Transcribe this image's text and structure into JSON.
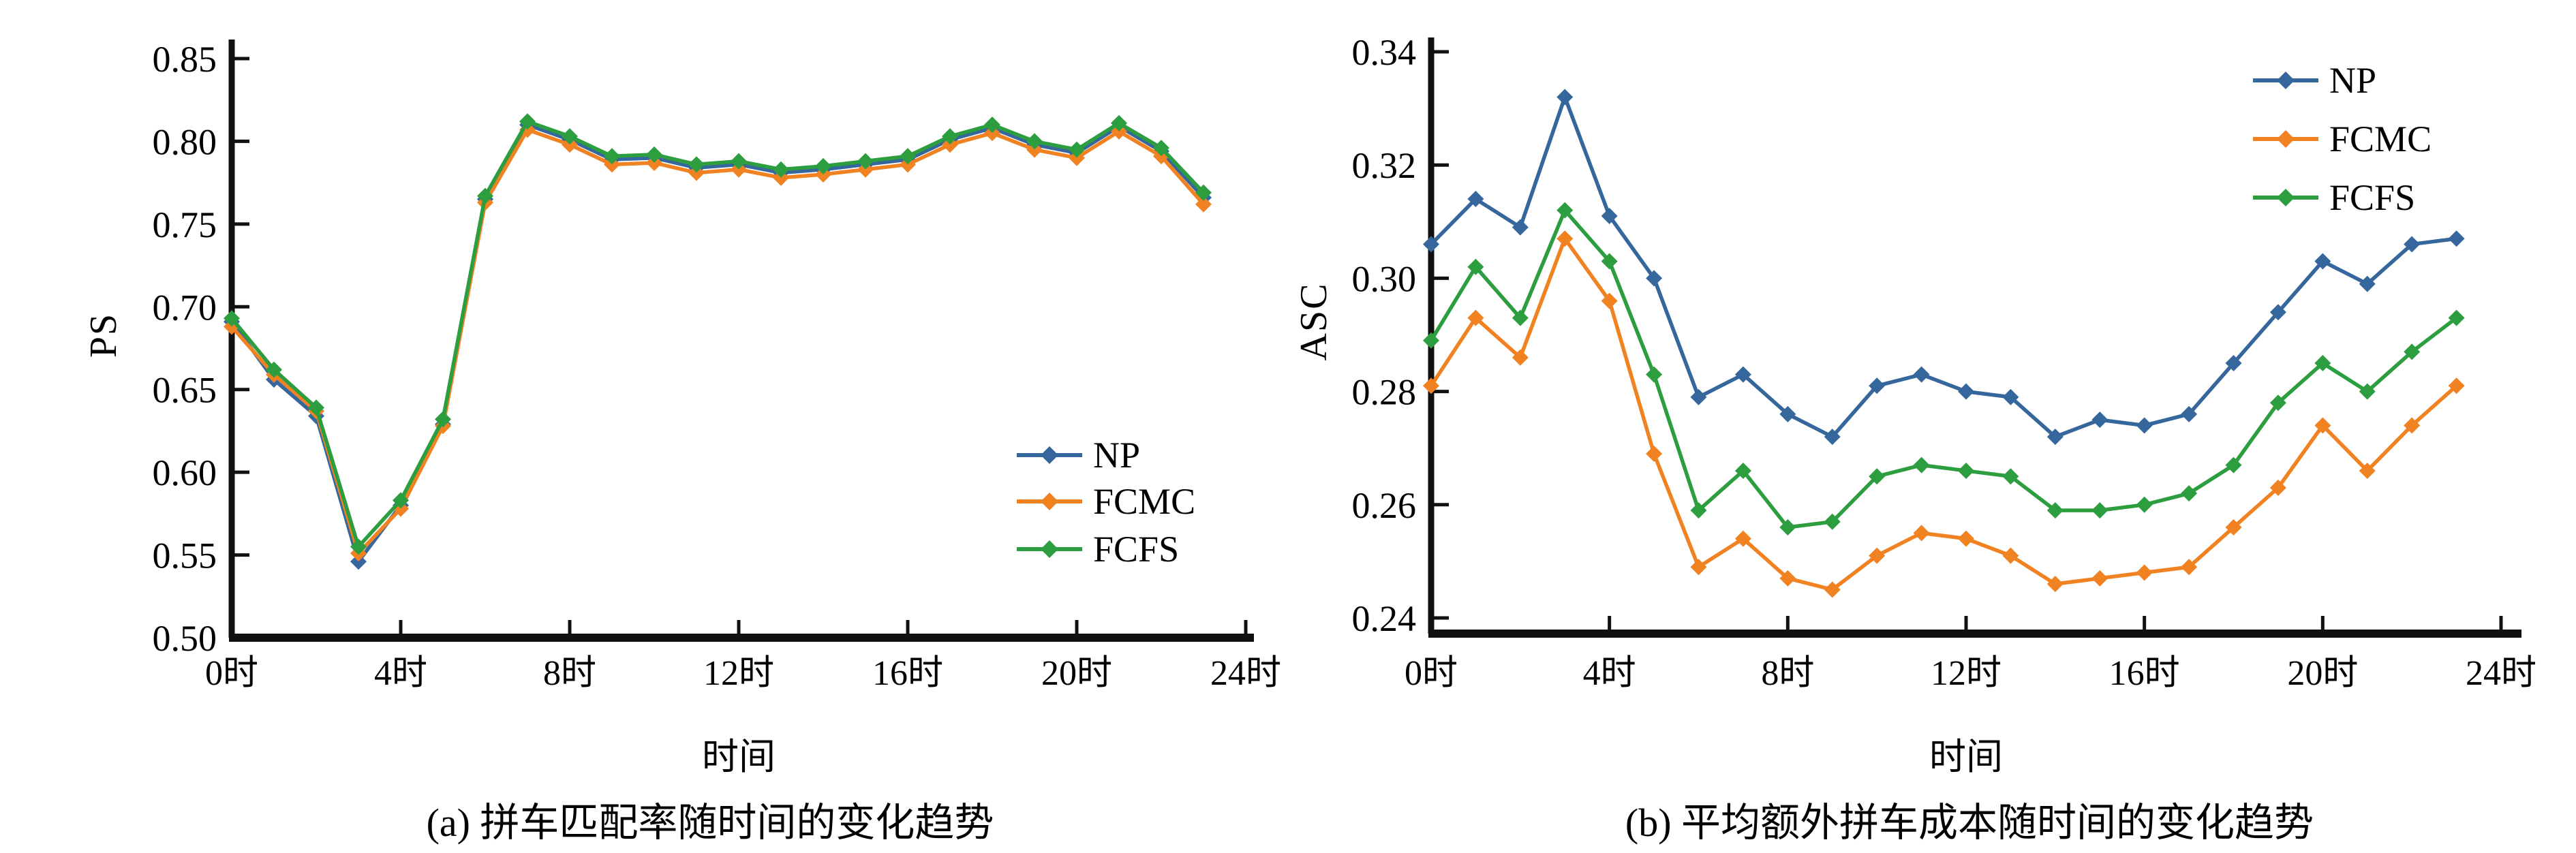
{
  "page": {
    "background": "#ffffff"
  },
  "colors": {
    "np": "#35679d",
    "fcmc": "#f08222",
    "fcfs": "#2d9e3f",
    "axis": "#111111",
    "text": "#000000"
  },
  "chart_data": [
    {
      "id": "a",
      "type": "line",
      "caption": "(a) 拼车匹配率随时间的变化趋势",
      "xlabel": "时间",
      "ylabel": "PS",
      "x": [
        0,
        1,
        2,
        3,
        4,
        5,
        6,
        7,
        8,
        9,
        10,
        11,
        12,
        13,
        14,
        15,
        16,
        17,
        18,
        19,
        20,
        21,
        22,
        23
      ],
      "xtick_hours": [
        0,
        4,
        8,
        12,
        16,
        20,
        24
      ],
      "xtick_labels": [
        "0时",
        "4时",
        "8时",
        "12时",
        "16时",
        "20时",
        "24时"
      ],
      "ylim": [
        0.5,
        0.85
      ],
      "yticks": [
        0.85,
        0.8,
        0.75,
        0.7,
        0.65,
        0.6,
        0.55,
        0.5
      ],
      "ytick_labels": [
        "0.85",
        "0.80",
        "0.75",
        "0.70",
        "0.65",
        "0.60",
        "0.55",
        "0.50"
      ],
      "grid": false,
      "legend_position": "center-right",
      "legend_labels": [
        "NP",
        "FCMC",
        "FCFS"
      ],
      "series": [
        {
          "name": "NP",
          "color": "#35679d",
          "values": [
            0.691,
            0.656,
            0.634,
            0.546,
            0.58,
            0.629,
            0.765,
            0.81,
            0.801,
            0.789,
            0.79,
            0.784,
            0.786,
            0.781,
            0.783,
            0.786,
            0.789,
            0.801,
            0.808,
            0.798,
            0.793,
            0.809,
            0.794,
            0.766
          ]
        },
        {
          "name": "FCMC",
          "color": "#f08222",
          "values": [
            0.688,
            0.659,
            0.637,
            0.551,
            0.578,
            0.628,
            0.763,
            0.807,
            0.798,
            0.786,
            0.787,
            0.781,
            0.783,
            0.778,
            0.78,
            0.783,
            0.786,
            0.798,
            0.805,
            0.795,
            0.79,
            0.806,
            0.791,
            0.762
          ]
        },
        {
          "name": "FCFS",
          "color": "#2d9e3f",
          "values": [
            0.693,
            0.662,
            0.639,
            0.555,
            0.583,
            0.632,
            0.767,
            0.812,
            0.803,
            0.791,
            0.792,
            0.786,
            0.788,
            0.783,
            0.785,
            0.788,
            0.791,
            0.803,
            0.81,
            0.8,
            0.795,
            0.811,
            0.796,
            0.769
          ]
        }
      ]
    },
    {
      "id": "b",
      "type": "line",
      "caption": "(b) 平均额外拼车成本随时间的变化趋势",
      "xlabel": "时间",
      "ylabel": "ASC",
      "x": [
        0,
        1,
        2,
        3,
        4,
        5,
        6,
        7,
        8,
        9,
        10,
        11,
        12,
        13,
        14,
        15,
        16,
        17,
        18,
        19,
        20,
        21,
        22,
        23
      ],
      "xtick_hours": [
        0,
        4,
        8,
        12,
        16,
        20,
        24
      ],
      "xtick_labels": [
        "0时",
        "4时",
        "8时",
        "12时",
        "16时",
        "20时",
        "24时"
      ],
      "ylim": [
        0.24,
        0.34
      ],
      "yticks": [
        0.34,
        0.32,
        0.3,
        0.28,
        0.26,
        0.24
      ],
      "ytick_labels": [
        "0.34",
        "0.32",
        "0.30",
        "0.28",
        "0.26",
        "0.24"
      ],
      "grid": false,
      "legend_position": "top-right",
      "legend_labels": [
        "NP",
        "FCMC",
        "FCFS"
      ],
      "series": [
        {
          "name": "NP",
          "color": "#35679d",
          "values": [
            0.306,
            0.314,
            0.309,
            0.332,
            0.311,
            0.3,
            0.279,
            0.283,
            0.276,
            0.272,
            0.281,
            0.283,
            0.28,
            0.279,
            0.272,
            0.275,
            0.274,
            0.276,
            0.285,
            0.294,
            0.303,
            0.299,
            0.306,
            0.307
          ]
        },
        {
          "name": "FCMC",
          "color": "#f08222",
          "values": [
            0.281,
            0.293,
            0.286,
            0.307,
            0.296,
            0.269,
            0.249,
            0.254,
            0.247,
            0.245,
            0.251,
            0.255,
            0.254,
            0.251,
            0.246,
            0.247,
            0.248,
            0.249,
            0.256,
            0.263,
            0.274,
            0.266,
            0.274,
            0.281
          ]
        },
        {
          "name": "FCFS",
          "color": "#2d9e3f",
          "values": [
            0.289,
            0.302,
            0.293,
            0.312,
            0.303,
            0.283,
            0.259,
            0.266,
            0.256,
            0.257,
            0.265,
            0.267,
            0.266,
            0.265,
            0.259,
            0.259,
            0.26,
            0.262,
            0.267,
            0.278,
            0.285,
            0.28,
            0.287,
            0.293
          ]
        }
      ]
    }
  ]
}
